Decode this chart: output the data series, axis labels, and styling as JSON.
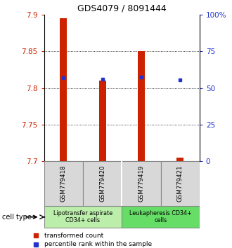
{
  "title": "GDS4079 / 8091444",
  "samples": [
    "GSM779418",
    "GSM779420",
    "GSM779419",
    "GSM779421"
  ],
  "transformed_counts": [
    7.895,
    7.81,
    7.85,
    7.705
  ],
  "percentile_ranks": [
    57.0,
    56.0,
    57.5,
    55.5
  ],
  "ymin": 7.7,
  "ymax": 7.9,
  "yticks": [
    7.7,
    7.75,
    7.8,
    7.85,
    7.9
  ],
  "ytick_labels": [
    "7.7",
    "7.75",
    "7.8",
    "7.85",
    "7.9"
  ],
  "y2min": 0,
  "y2max": 100,
  "y2ticks": [
    0,
    25,
    50,
    75,
    100
  ],
  "y2tick_labels": [
    "0",
    "25",
    "50",
    "75",
    "100%"
  ],
  "bar_color": "#cc2200",
  "dot_color": "#2233cc",
  "bar_width": 0.18,
  "groups": [
    {
      "label": "Lipotransfer aspirate\nCD34+ cells",
      "samples": [
        0,
        1
      ],
      "color": "#bbeeaa"
    },
    {
      "label": "Leukapheresis CD34+\ncells",
      "samples": [
        2,
        3
      ],
      "color": "#66dd66"
    }
  ],
  "cell_type_label": "cell type",
  "legend_red_label": "transformed count",
  "legend_blue_label": "percentile rank within the sample",
  "sample_bg_color": "#d8d8d8",
  "plot_bg": "#ffffff",
  "grid_dotted_ticks": [
    7.75,
    7.8,
    7.85
  ]
}
